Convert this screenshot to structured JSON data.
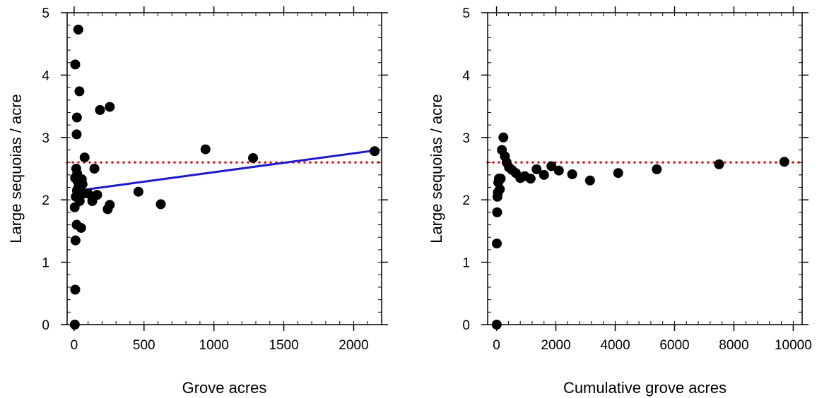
{
  "chart_data": [
    {
      "type": "scatter",
      "xlabel": "Grove acres",
      "ylabel": "Large sequoias / acre",
      "xlim": [
        -50,
        2200
      ],
      "ylim": [
        0,
        5
      ],
      "xticks": [
        0,
        500,
        1000,
        1500,
        2000
      ],
      "yticks": [
        0,
        1,
        2,
        3,
        4,
        5
      ],
      "x_minor_step": 100,
      "y_minor_step": 0.2,
      "grid": false,
      "legend": "none",
      "points": [
        [
          5,
          0.0
        ],
        [
          8,
          0.56
        ],
        [
          10,
          1.35
        ],
        [
          18,
          1.6
        ],
        [
          4,
          1.88
        ],
        [
          12,
          2.05
        ],
        [
          7,
          2.35
        ],
        [
          15,
          2.5
        ],
        [
          20,
          2.15
        ],
        [
          25,
          2.3
        ],
        [
          30,
          2.2
        ],
        [
          22,
          2.42
        ],
        [
          35,
          2.28
        ],
        [
          40,
          1.98
        ],
        [
          45,
          2.1
        ],
        [
          50,
          1.55
        ],
        [
          55,
          2.33
        ],
        [
          60,
          2.25
        ],
        [
          65,
          2.1
        ],
        [
          75,
          2.68
        ],
        [
          100,
          2.1
        ],
        [
          130,
          1.98
        ],
        [
          145,
          2.5
        ],
        [
          165,
          2.08
        ],
        [
          240,
          1.85
        ],
        [
          255,
          1.92
        ],
        [
          460,
          2.13
        ],
        [
          620,
          1.93
        ],
        [
          940,
          2.81
        ],
        [
          1280,
          2.67
        ],
        [
          2150,
          2.78
        ],
        [
          8,
          4.17
        ],
        [
          30,
          4.73
        ],
        [
          38,
          3.74
        ],
        [
          20,
          3.32
        ],
        [
          18,
          3.05
        ],
        [
          185,
          3.44
        ],
        [
          255,
          3.49
        ]
      ],
      "point_color": "#000000",
      "reference_line": {
        "y": 2.6,
        "style": "dotted",
        "color": "#e01010"
      },
      "fit_line": {
        "x": [
          0,
          2180
        ],
        "y": [
          2.14,
          2.8
        ],
        "color": "#1a1acc"
      }
    },
    {
      "type": "scatter",
      "xlabel": "Cumulative grove acres",
      "ylabel": "Large sequoias / acre",
      "xlim": [
        -300,
        10300
      ],
      "ylim": [
        0,
        5
      ],
      "xticks": [
        0,
        2000,
        4000,
        6000,
        8000,
        10000
      ],
      "yticks": [
        0,
        1,
        2,
        3,
        4,
        5
      ],
      "x_minor_step": 400,
      "y_minor_step": 0.2,
      "grid": false,
      "legend": "none",
      "points": [
        [
          5,
          0.0
        ],
        [
          10,
          1.3
        ],
        [
          20,
          1.8
        ],
        [
          30,
          2.05
        ],
        [
          45,
          2.12
        ],
        [
          60,
          2.28
        ],
        [
          80,
          2.34
        ],
        [
          110,
          2.17
        ],
        [
          140,
          2.34
        ],
        [
          180,
          2.8
        ],
        [
          230,
          3.0
        ],
        [
          280,
          2.7
        ],
        [
          340,
          2.6
        ],
        [
          420,
          2.52
        ],
        [
          520,
          2.48
        ],
        [
          650,
          2.43
        ],
        [
          800,
          2.35
        ],
        [
          950,
          2.38
        ],
        [
          1150,
          2.34
        ],
        [
          1350,
          2.49
        ],
        [
          1600,
          2.4
        ],
        [
          1850,
          2.54
        ],
        [
          2100,
          2.47
        ],
        [
          2550,
          2.41
        ],
        [
          3150,
          2.31
        ],
        [
          4100,
          2.43
        ],
        [
          5400,
          2.49
        ],
        [
          7500,
          2.57
        ],
        [
          9700,
          2.61
        ]
      ],
      "point_color": "#000000",
      "reference_line": {
        "y": 2.6,
        "style": "dotted",
        "color": "#e01010"
      }
    }
  ]
}
